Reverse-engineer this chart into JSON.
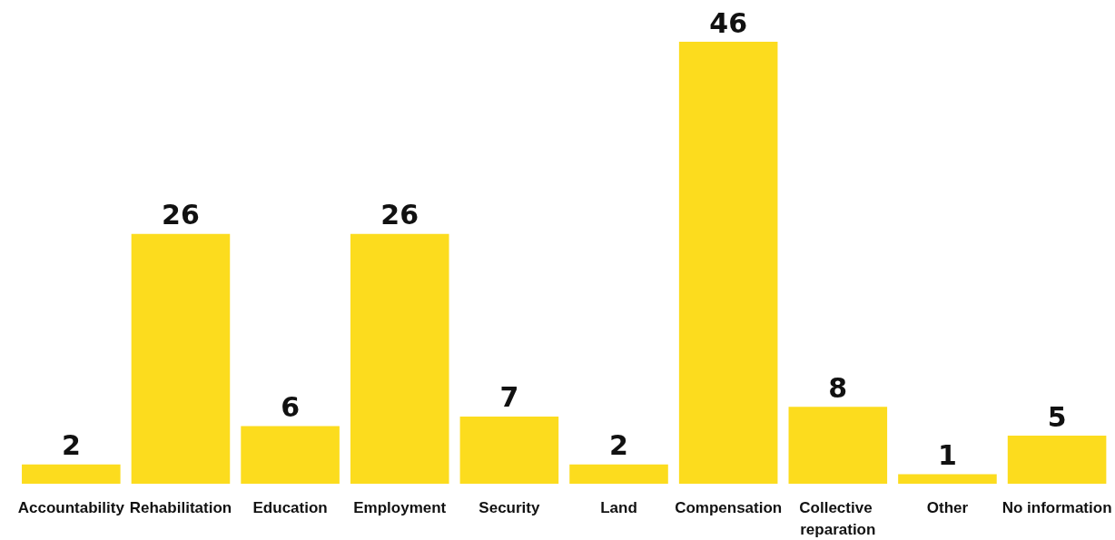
{
  "chart_data": {
    "type": "bar",
    "categories": [
      "Accountability",
      "Rehabilitation",
      "Education",
      "Employment",
      "Security",
      "Land",
      "Compensation",
      "Collective reparation",
      "Other",
      "No information"
    ],
    "values": [
      2,
      26,
      6,
      26,
      7,
      2,
      46,
      8,
      1,
      5
    ],
    "color": "#fcdc1e",
    "data_labels": true
  }
}
